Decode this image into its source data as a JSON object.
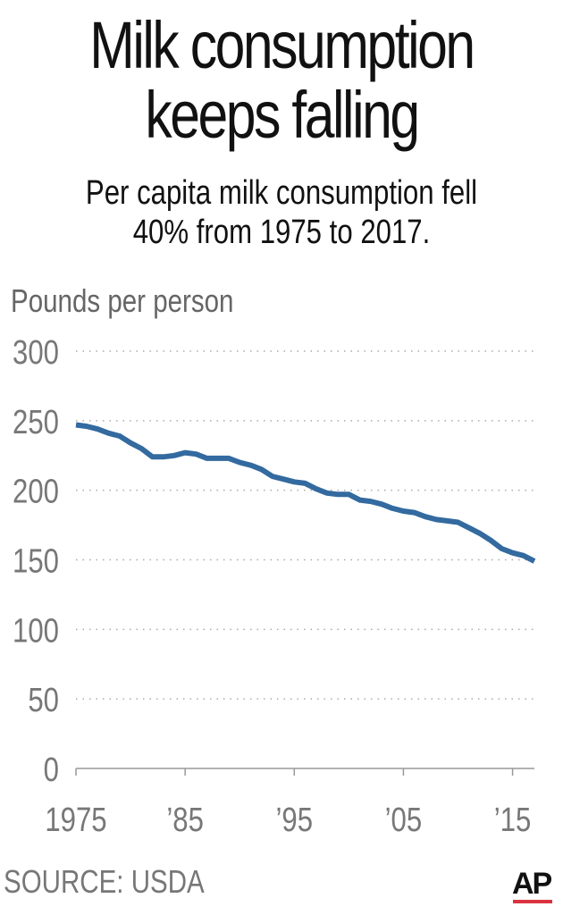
{
  "chart_data": {
    "type": "line",
    "title": "Milk consumption keeps falling",
    "subtitle": "Per capita milk consumption fell 40% from 1975 to 2017.",
    "ylabel": "Pounds per person",
    "xlabel": "",
    "ylim": [
      0,
      300
    ],
    "xlim": [
      1975,
      2017
    ],
    "yticks": [
      "300",
      "250",
      "200",
      "150",
      "100",
      "50",
      "0"
    ],
    "ytick_values": [
      300,
      250,
      200,
      150,
      100,
      50,
      0
    ],
    "xticks": [
      "1975",
      "’85",
      "’95",
      "’05",
      "’15"
    ],
    "xtick_values": [
      1975,
      1985,
      1995,
      2005,
      2015
    ],
    "grid": "horizontal dotted",
    "line_color": "#336a9f",
    "x": [
      1975,
      1976,
      1977,
      1978,
      1979,
      1980,
      1981,
      1982,
      1983,
      1984,
      1985,
      1986,
      1987,
      1988,
      1989,
      1990,
      1991,
      1992,
      1993,
      1994,
      1995,
      1996,
      1997,
      1998,
      1999,
      2000,
      2001,
      2002,
      2003,
      2004,
      2005,
      2006,
      2007,
      2008,
      2009,
      2010,
      2011,
      2012,
      2013,
      2014,
      2015,
      2016,
      2017
    ],
    "values": [
      247,
      246,
      244,
      241,
      239,
      234,
      230,
      224,
      224,
      225,
      227,
      226,
      223,
      223,
      223,
      220,
      218,
      215,
      210,
      208,
      206,
      205,
      201,
      198,
      197,
      197,
      193,
      192,
      190,
      187,
      185,
      184,
      181,
      179,
      178,
      177,
      173,
      169,
      164,
      158,
      155,
      153,
      149
    ],
    "source": "SOURCE: USDA"
  },
  "logo": "AP"
}
